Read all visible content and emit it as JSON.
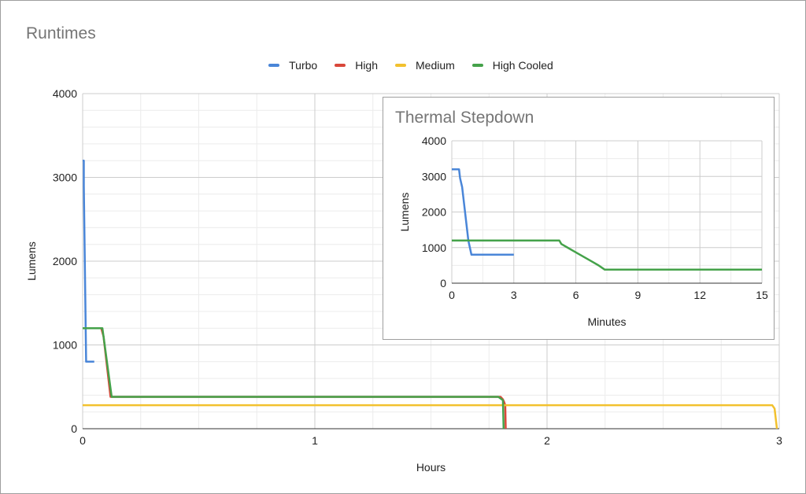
{
  "chart_data": [
    {
      "type": "line",
      "title": "Runtimes",
      "xlabel": "Hours",
      "ylabel": "Lumens",
      "xlim": [
        0,
        3
      ],
      "ylim": [
        0,
        4000
      ],
      "x_ticks": [
        0,
        1,
        2,
        3
      ],
      "y_ticks": [
        0,
        1000,
        2000,
        3000,
        4000
      ],
      "grid": true,
      "legend_position": "top",
      "series": [
        {
          "name": "Turbo",
          "color": "#4a86d8",
          "points": [
            [
              0.0,
              3200
            ],
            [
              0.005,
              3200
            ],
            [
              0.005,
              2900
            ],
            [
              0.015,
              800
            ],
            [
              0.05,
              800
            ]
          ]
        },
        {
          "name": "High",
          "color": "#d9473a",
          "points": [
            [
              0.0,
              1200
            ],
            [
              0.08,
              1200
            ],
            [
              0.09,
              1100
            ],
            [
              0.12,
              380
            ],
            [
              1.8,
              380
            ],
            [
              1.81,
              350
            ],
            [
              1.815,
              320
            ],
            [
              1.82,
              280
            ],
            [
              1.822,
              0
            ]
          ]
        },
        {
          "name": "Medium",
          "color": "#f2c12e",
          "points": [
            [
              0.0,
              280
            ],
            [
              2.97,
              280
            ],
            [
              2.975,
              260
            ],
            [
              2.98,
              240
            ],
            [
              2.99,
              0
            ]
          ]
        },
        {
          "name": "High Cooled",
          "color": "#45a24a",
          "points": [
            [
              0.0,
              1200
            ],
            [
              0.085,
              1200
            ],
            [
              0.09,
              1100
            ],
            [
              0.125,
              380
            ],
            [
              1.79,
              380
            ],
            [
              1.8,
              360
            ],
            [
              1.81,
              340
            ],
            [
              1.813,
              0
            ]
          ]
        }
      ]
    },
    {
      "type": "line",
      "title": "Thermal Stepdown",
      "xlabel": "Minutes",
      "ylabel": "Lumens",
      "xlim": [
        0,
        15
      ],
      "ylim": [
        0,
        4000
      ],
      "x_ticks": [
        0,
        3,
        6,
        9,
        12,
        15
      ],
      "y_ticks": [
        0,
        1000,
        2000,
        3000,
        4000
      ],
      "grid": true,
      "series": [
        {
          "name": "Turbo",
          "color": "#4a86d8",
          "points": [
            [
              0.0,
              3200
            ],
            [
              0.35,
              3200
            ],
            [
              0.4,
              2950
            ],
            [
              0.5,
              2700
            ],
            [
              0.6,
              2200
            ],
            [
              0.7,
              1700
            ],
            [
              0.8,
              1200
            ],
            [
              0.95,
              800
            ],
            [
              3.0,
              800
            ]
          ]
        },
        {
          "name": "High Cooled",
          "color": "#45a24a",
          "points": [
            [
              0.0,
              1200
            ],
            [
              5.2,
              1200
            ],
            [
              5.3,
              1100
            ],
            [
              5.6,
              1000
            ],
            [
              5.9,
              900
            ],
            [
              6.2,
              800
            ],
            [
              6.5,
              700
            ],
            [
              6.8,
              600
            ],
            [
              7.1,
              500
            ],
            [
              7.4,
              380
            ],
            [
              15.0,
              380
            ]
          ]
        }
      ]
    }
  ]
}
